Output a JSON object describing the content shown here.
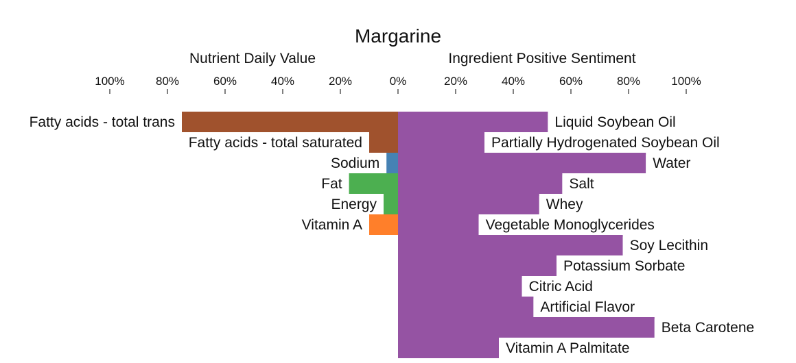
{
  "chart_data": {
    "type": "bar",
    "title": "Margarine",
    "left_axis_label": "Nutrient Daily Value",
    "right_axis_label": "Ingredient Positive Sentiment",
    "left_ticks": [
      "100%",
      "80%",
      "60%",
      "40%",
      "20%",
      "0%"
    ],
    "right_ticks": [
      "20%",
      "40%",
      "60%",
      "80%",
      "100%"
    ],
    "nutrients": [
      {
        "label": "Fatty acids - total trans",
        "value": 75,
        "color": "#a0522d"
      },
      {
        "label": "Fatty acids - total saturated",
        "value": 10,
        "color": "#a0522d"
      },
      {
        "label": "Sodium",
        "value": 4,
        "color": "#4682b4"
      },
      {
        "label": "Fat",
        "value": 17,
        "color": "#4caf50"
      },
      {
        "label": "Energy",
        "value": 5,
        "color": "#4caf50"
      },
      {
        "label": "Vitamin A",
        "value": 10,
        "color": "#ff7f2a"
      }
    ],
    "ingredients": [
      {
        "label": "Liquid Soybean Oil",
        "value": 52
      },
      {
        "label": "Partially Hydrogenated Soybean Oil",
        "value": 30
      },
      {
        "label": "Water",
        "value": 86
      },
      {
        "label": "Salt",
        "value": 57
      },
      {
        "label": "Whey",
        "value": 49
      },
      {
        "label": "Vegetable Monoglycerides",
        "value": 28
      },
      {
        "label": "Soy Lecithin",
        "value": 78
      },
      {
        "label": "Potassium Sorbate",
        "value": 55
      },
      {
        "label": "Citric Acid",
        "value": 43
      },
      {
        "label": "Artificial Flavor",
        "value": 47
      },
      {
        "label": "Beta Carotene",
        "value": 89
      },
      {
        "label": "Vitamin A Palmitate",
        "value": 35
      }
    ],
    "ingredient_color": "#9553a3"
  }
}
